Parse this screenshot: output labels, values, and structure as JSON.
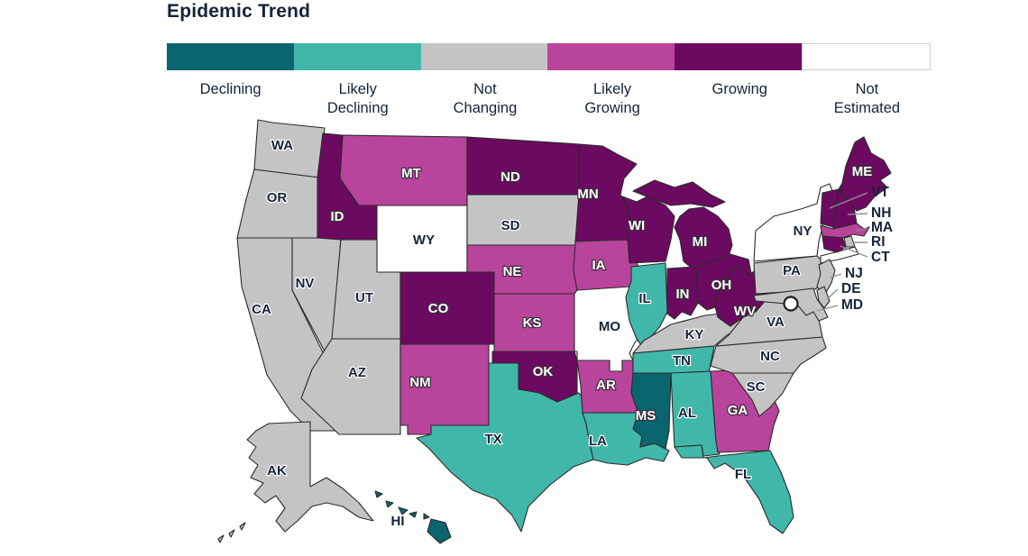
{
  "title": "Epidemic Trend",
  "legend": {
    "items": [
      {
        "id": "declining",
        "label": "Declining",
        "color": "#0a656e"
      },
      {
        "id": "likely_declining",
        "label": "Likely\nDeclining",
        "color": "#41b7aa"
      },
      {
        "id": "not_changing",
        "label": "Not\nChanging",
        "color": "#c4c4c4"
      },
      {
        "id": "likely_growing",
        "label": "Likely\nGrowing",
        "color": "#b9449c"
      },
      {
        "id": "growing",
        "label": "Growing",
        "color": "#6c0a61"
      },
      {
        "id": "not_estimated",
        "label": "Not\nEstimated",
        "color": "#ffffff"
      }
    ]
  },
  "map": {
    "states": [
      {
        "code": "WA",
        "category": "not_changing"
      },
      {
        "code": "OR",
        "category": "not_changing"
      },
      {
        "code": "CA",
        "category": "not_changing"
      },
      {
        "code": "NV",
        "category": "not_changing"
      },
      {
        "code": "ID",
        "category": "growing"
      },
      {
        "code": "MT",
        "category": "likely_growing"
      },
      {
        "code": "WY",
        "category": "not_estimated"
      },
      {
        "code": "UT",
        "category": "not_changing"
      },
      {
        "code": "CO",
        "category": "growing"
      },
      {
        "code": "AZ",
        "category": "not_changing"
      },
      {
        "code": "NM",
        "category": "likely_growing"
      },
      {
        "code": "ND",
        "category": "growing"
      },
      {
        "code": "SD",
        "category": "not_changing"
      },
      {
        "code": "NE",
        "category": "likely_growing"
      },
      {
        "code": "KS",
        "category": "likely_growing"
      },
      {
        "code": "OK",
        "category": "growing"
      },
      {
        "code": "TX",
        "category": "likely_declining"
      },
      {
        "code": "MN",
        "category": "growing"
      },
      {
        "code": "IA",
        "category": "likely_growing"
      },
      {
        "code": "MO",
        "category": "not_estimated"
      },
      {
        "code": "AR",
        "category": "likely_growing"
      },
      {
        "code": "LA",
        "category": "likely_declining"
      },
      {
        "code": "WI",
        "category": "growing"
      },
      {
        "code": "IL",
        "category": "likely_declining"
      },
      {
        "code": "MI",
        "category": "growing"
      },
      {
        "code": "IN",
        "category": "growing"
      },
      {
        "code": "OH",
        "category": "growing"
      },
      {
        "code": "KY",
        "category": "not_changing"
      },
      {
        "code": "TN",
        "category": "likely_declining"
      },
      {
        "code": "MS",
        "category": "declining"
      },
      {
        "code": "AL",
        "category": "likely_declining"
      },
      {
        "code": "GA",
        "category": "likely_growing"
      },
      {
        "code": "FL",
        "category": "likely_declining"
      },
      {
        "code": "SC",
        "category": "not_changing"
      },
      {
        "code": "NC",
        "category": "not_changing"
      },
      {
        "code": "VA",
        "category": "not_changing"
      },
      {
        "code": "WV",
        "category": "growing"
      },
      {
        "code": "PA",
        "category": "not_changing"
      },
      {
        "code": "NY",
        "category": "not_estimated"
      },
      {
        "code": "NJ",
        "category": "not_changing"
      },
      {
        "code": "DE",
        "category": "not_changing"
      },
      {
        "code": "MD",
        "category": "not_changing"
      },
      {
        "code": "VT",
        "category": "growing"
      },
      {
        "code": "NH",
        "category": "growing"
      },
      {
        "code": "MA",
        "category": "likely_growing"
      },
      {
        "code": "RI",
        "category": "not_changing"
      },
      {
        "code": "CT",
        "category": "growing"
      },
      {
        "code": "ME",
        "category": "growing"
      },
      {
        "code": "AK",
        "category": "not_changing"
      },
      {
        "code": "HI",
        "category": "declining"
      }
    ],
    "dc_marker": {
      "category": "not_estimated"
    }
  }
}
